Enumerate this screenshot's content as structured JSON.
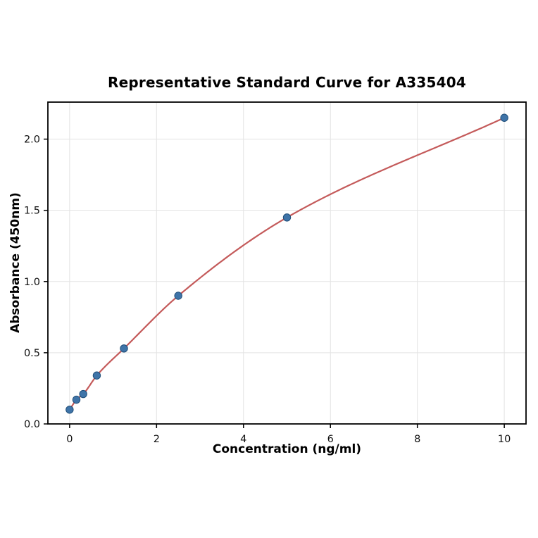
{
  "chart_data": {
    "type": "scatter",
    "title": "Representative Standard Curve for A335404",
    "xlabel": "Concentration (ng/ml)",
    "ylabel": "Absorbance (450nm)",
    "x": [
      0,
      0.156,
      0.313,
      0.625,
      1.25,
      2.5,
      5,
      10
    ],
    "y": [
      0.1,
      0.17,
      0.21,
      0.34,
      0.53,
      0.9,
      1.45,
      2.15
    ],
    "fit_line": "smooth curve through all points",
    "xlim": [
      -0.5,
      10.5
    ],
    "ylim": [
      0,
      2.26
    ],
    "x_ticks": [
      0,
      2,
      4,
      6,
      8,
      10
    ],
    "x_tick_labels": [
      "0",
      "2",
      "4",
      "6",
      "8",
      "10"
    ],
    "y_ticks": [
      0.0,
      0.5,
      1.0,
      1.5,
      2.0
    ],
    "y_tick_labels": [
      "0.0",
      "0.5",
      "1.0",
      "1.5",
      "2.0"
    ],
    "grid": true,
    "legend": "none",
    "line_color": "#c45a5a",
    "point_fill": "#3f74a8",
    "point_edge": "#1f4e79",
    "grid_color": "#e3e3e3",
    "axis_color": "#000000",
    "plot_background": "#ffffff"
  }
}
